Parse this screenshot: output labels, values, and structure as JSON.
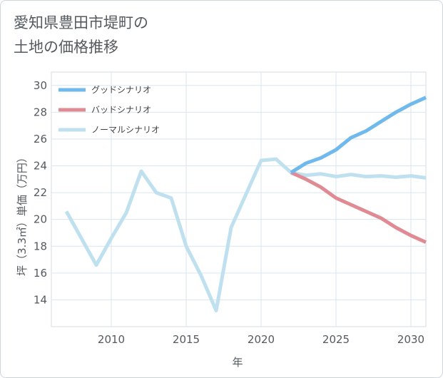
{
  "title_lines": [
    "愛知県豊田市堤町の",
    "土地の価格推移"
  ],
  "chart_data": {
    "type": "line",
    "xlabel": "年",
    "ylabel": "坪（3.3㎡）単価（万円）",
    "xlim": [
      2006,
      2031
    ],
    "ylim": [
      12,
      31
    ],
    "x_ticks": [
      2010,
      2015,
      2020,
      2025,
      2030
    ],
    "y_ticks": [
      14,
      16,
      18,
      20,
      22,
      24,
      26,
      28,
      30
    ],
    "grid": true,
    "legend_position": "top-left",
    "series": [
      {
        "name": "グッドシナリオ",
        "color": "#6fb9ec",
        "x": [
          2022,
          2023,
          2024,
          2025,
          2026,
          2027,
          2028,
          2029,
          2030,
          2031
        ],
        "values": [
          23.5,
          24.2,
          24.6,
          25.2,
          26.1,
          26.6,
          27.3,
          28.0,
          28.6,
          29.1
        ]
      },
      {
        "name": "バッドシナリオ",
        "color": "#e08a93",
        "x": [
          2022,
          2023,
          2024,
          2025,
          2026,
          2027,
          2028,
          2029,
          2030,
          2031
        ],
        "values": [
          23.5,
          23.0,
          22.4,
          21.6,
          21.1,
          20.6,
          20.1,
          19.4,
          18.8,
          18.3
        ]
      },
      {
        "name": "ノーマルシナリオ",
        "color": "#bfe0ee",
        "x": [
          2007,
          2008,
          2009,
          2010,
          2011,
          2012,
          2013,
          2014,
          2015,
          2016,
          2017,
          2018,
          2019,
          2020,
          2021,
          2022,
          2023,
          2024,
          2025,
          2026,
          2027,
          2028,
          2029,
          2030,
          2031
        ],
        "values": [
          20.6,
          18.6,
          16.6,
          18.6,
          20.5,
          23.6,
          22.0,
          21.6,
          18.0,
          15.8,
          13.2,
          19.4,
          21.9,
          24.4,
          24.5,
          23.5,
          23.3,
          23.4,
          23.2,
          23.35,
          23.2,
          23.25,
          23.15,
          23.25,
          23.1
        ]
      }
    ]
  }
}
